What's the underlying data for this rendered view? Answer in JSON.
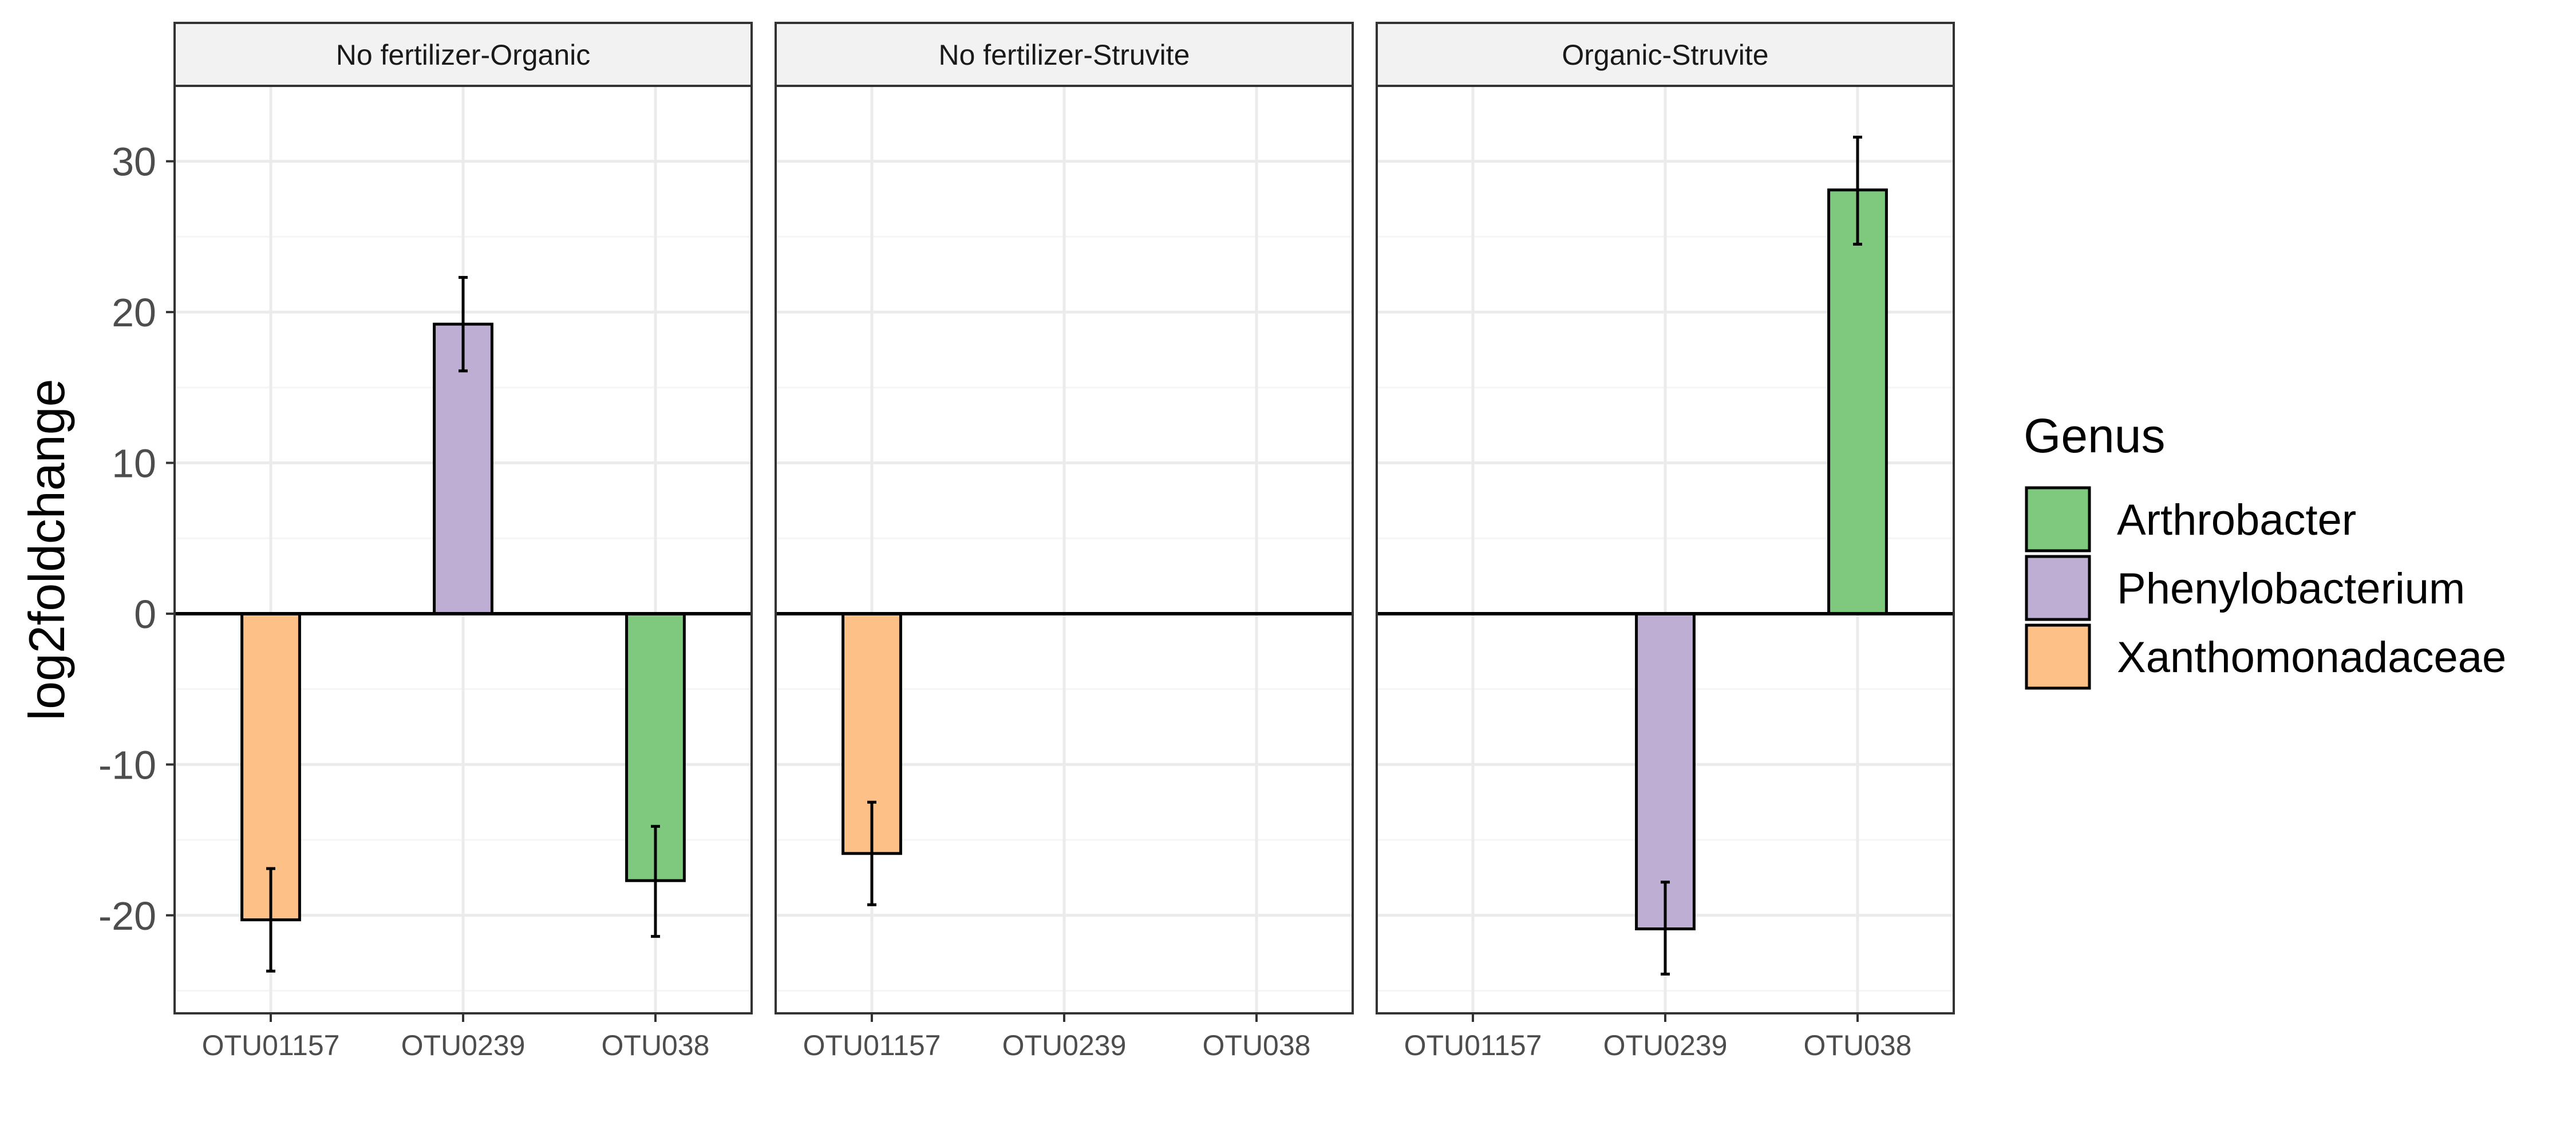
{
  "chart_data": {
    "type": "bar",
    "ylabel": "log2foldchange",
    "ylim": [
      -26.5,
      35
    ],
    "yticks": [
      -20,
      -10,
      0,
      10,
      20,
      30
    ],
    "grid": true,
    "categories": [
      "OTU01157",
      "OTU0239",
      "OTU038"
    ],
    "panels": [
      {
        "title": "No fertilizer-Organic",
        "bars": [
          {
            "category": "OTU01157",
            "genus": "Xanthomonadaceae",
            "value": -20.3,
            "error_low": -23.7,
            "error_high": -16.9
          },
          {
            "category": "OTU0239",
            "genus": "Phenylobacterium",
            "value": 19.2,
            "error_low": 16.1,
            "error_high": 22.3
          },
          {
            "category": "OTU038",
            "genus": "Arthrobacter",
            "value": -17.7,
            "error_low": -21.4,
            "error_high": -14.1
          }
        ]
      },
      {
        "title": "No fertilizer-Struvite",
        "bars": [
          {
            "category": "OTU01157",
            "genus": "Xanthomonadaceae",
            "value": -15.9,
            "error_low": -19.3,
            "error_high": -12.5
          }
        ]
      },
      {
        "title": "Organic-Struvite",
        "bars": [
          {
            "category": "OTU0239",
            "genus": "Phenylobacterium",
            "value": -20.9,
            "error_low": -23.9,
            "error_high": -17.8
          },
          {
            "category": "OTU038",
            "genus": "Arthrobacter",
            "value": 28.1,
            "error_low": 24.5,
            "error_high": 31.6
          }
        ]
      }
    ],
    "legend": {
      "title": "Genus",
      "placement": "right",
      "entries": [
        {
          "name": "Arthrobacter",
          "color": "#7fc97f"
        },
        {
          "name": "Phenylobacterium",
          "color": "#beaed4"
        },
        {
          "name": "Xanthomonadaceae",
          "color": "#fdc086"
        }
      ]
    },
    "colors": {
      "strip_fill": "#f2f2f2",
      "panel_border": "#333333",
      "grid_major": "#ebebeb",
      "grid_minor": "#f5f5f5",
      "axis_text": "#4d4d4d",
      "title_text": "#000000"
    }
  }
}
